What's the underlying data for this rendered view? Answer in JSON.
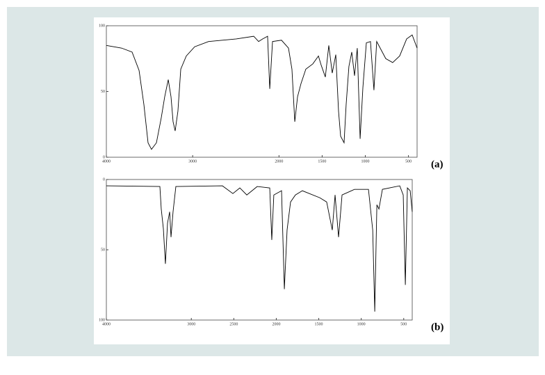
{
  "chart_data": [
    {
      "type": "line",
      "label": "(a)",
      "x": [
        4000,
        3823,
        3702,
        3621,
        3565,
        3517,
        3477,
        3420,
        3364,
        3324,
        3283,
        3251,
        3227,
        3203,
        3171,
        3138,
        3074,
        2977,
        2816,
        2494,
        2293,
        2236,
        2188,
        2132,
        2107,
        2075,
        1971,
        1890,
        1850,
        1817,
        1785,
        1745,
        1689,
        1608,
        1543,
        1511,
        1463,
        1423,
        1383,
        1342,
        1310,
        1286,
        1246,
        1222,
        1190,
        1157,
        1125,
        1093,
        1060,
        1028,
        988,
        940,
        900,
        868,
        763,
        683,
        602,
        521,
        457,
        400
      ],
      "series": [
        {
          "color": "#000000",
          "values": [
            85,
            83,
            80,
            66,
            40,
            11,
            6,
            11,
            30,
            46,
            59,
            46,
            27,
            20,
            35,
            67,
            77,
            84,
            88,
            90,
            92,
            88,
            90,
            92,
            52,
            88,
            89,
            83,
            67,
            27,
            46,
            56,
            67,
            71,
            77,
            70,
            61,
            85,
            64,
            78,
            35,
            16,
            11,
            40,
            69,
            80,
            62,
            83,
            14,
            53,
            87,
            88,
            51,
            88,
            75,
            72,
            77,
            90,
            93,
            83
          ]
        }
      ],
      "xlim": [
        4000,
        400
      ],
      "xticks": [
        4000,
        3000,
        2000,
        1500,
        1000,
        500
      ],
      "ylim": [
        0,
        100
      ],
      "yticks": [
        0,
        50,
        100
      ]
    },
    {
      "type": "line",
      "label": "(b)",
      "x": [
        4000,
        3370,
        3354,
        3329,
        3305,
        3280,
        3255,
        3239,
        3215,
        3182,
        2634,
        2511,
        2429,
        2347,
        2225,
        2077,
        2053,
        2029,
        1938,
        1905,
        1873,
        1832,
        1775,
        1693,
        1488,
        1407,
        1341,
        1308,
        1267,
        1226,
        1079,
        915,
        865,
        841,
        816,
        792,
        751,
        547,
        506,
        481,
        457,
        424,
        400
      ],
      "series": [
        {
          "color": "#000000",
          "values": [
            4.5,
            5,
            21,
            35,
            60,
            31,
            23,
            41,
            23,
            5,
            4.5,
            10,
            6,
            11,
            5,
            6,
            43,
            11,
            8,
            78,
            36,
            16,
            11,
            8,
            13,
            16,
            36,
            11,
            41,
            11,
            7,
            7,
            36,
            94,
            18,
            21,
            7,
            4.5,
            11,
            75,
            6,
            8,
            23
          ]
        }
      ],
      "xlim": [
        4000,
        400
      ],
      "xticks": [
        4000,
        3000,
        2500,
        2000,
        1500,
        1000,
        500
      ],
      "ylim": [
        100,
        0
      ],
      "yticks": [
        0,
        50,
        100
      ]
    }
  ]
}
